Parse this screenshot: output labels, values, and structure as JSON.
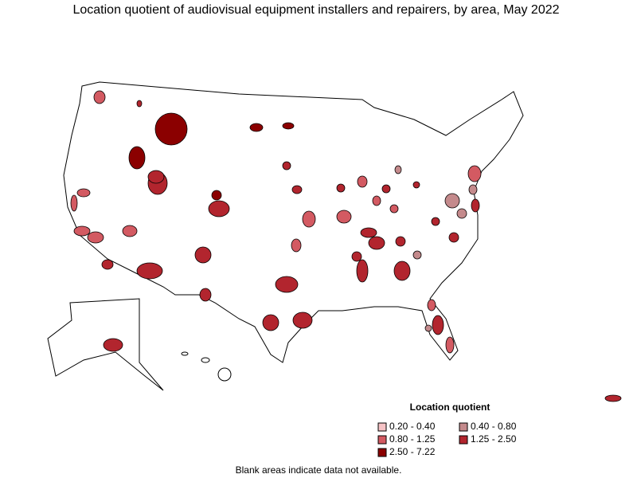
{
  "title": "Location quotient of audiovisual equipment installers and repairers, by area, May 2022",
  "legend": {
    "title": "Location quotient",
    "items": [
      {
        "label": "0.20 - 0.40",
        "color": "#f6c3c6"
      },
      {
        "label": "0.40 - 0.80",
        "color": "#c48a8c"
      },
      {
        "label": "0.80 - 1.25",
        "color": "#d35a62"
      },
      {
        "label": "1.25 - 2.50",
        "color": "#b2252e"
      },
      {
        "label": "2.50 - 7.22",
        "color": "#8b0000"
      }
    ]
  },
  "note": "Blank areas indicate data not available."
}
